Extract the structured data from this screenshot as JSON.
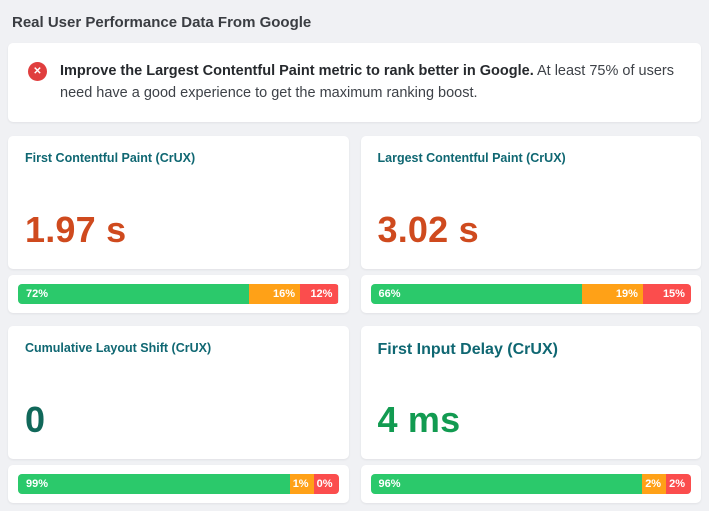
{
  "page": {
    "title": "Real User Performance Data From Google"
  },
  "alert": {
    "icon": "error-x-circle-icon",
    "icon_glyph": "✕",
    "bold_text": "Improve the Largest Contentful Paint metric to rank better in Google.",
    "text": " At least 75% of users need have a good experience to get the maximum ranking boost."
  },
  "colors": {
    "background": "#f0f1f4",
    "heading_teal": "#0f6772",
    "good_green": "#2bc96b",
    "needs_improvement_orange": "#ffa117",
    "poor_red": "#fb4d4d",
    "bad_value_orange_red": "#cf4a1e",
    "alert_icon_red": "#e03e3e"
  },
  "metrics": [
    {
      "label": "First Contentful Paint (CrUX)",
      "value": "1.97 s",
      "value_color": "#cf4a1e",
      "segments": [
        {
          "name": "good",
          "pct": 72,
          "label": "72%",
          "color": "#2bc96b"
        },
        {
          "name": "needs-improvement",
          "pct": 16,
          "label": "16%",
          "color": "#ffa117"
        },
        {
          "name": "poor",
          "pct": 12,
          "label": "12%",
          "color": "#fb4d4d"
        }
      ]
    },
    {
      "label": "Largest Contentful Paint (CrUX)",
      "value": "3.02 s",
      "value_color": "#cf4a1e",
      "segments": [
        {
          "name": "good",
          "pct": 66,
          "label": "66%",
          "color": "#2bc96b"
        },
        {
          "name": "needs-improvement",
          "pct": 19,
          "label": "19%",
          "color": "#ffa117"
        },
        {
          "name": "poor",
          "pct": 15,
          "label": "15%",
          "color": "#fb4d4d"
        }
      ]
    },
    {
      "label": "Cumulative Layout Shift (CrUX)",
      "value": "0",
      "value_color": "#11685a",
      "segments": [
        {
          "name": "good",
          "pct": 99,
          "label": "99%",
          "color": "#2bc96b"
        },
        {
          "name": "needs-improvement",
          "pct": 1,
          "label": "1%",
          "color": "#ffa117"
        },
        {
          "name": "poor",
          "pct": 0,
          "label": "0%",
          "color": "#fb4d4d"
        }
      ]
    },
    {
      "label": "First Input Delay (CrUX)",
      "value": "4 ms",
      "value_color": "#129b51",
      "segments": [
        {
          "name": "good",
          "pct": 96,
          "label": "96%",
          "color": "#2bc96b"
        },
        {
          "name": "needs-improvement",
          "pct": 2,
          "label": "2%",
          "color": "#ffa117"
        },
        {
          "name": "poor",
          "pct": 2,
          "label": "2%",
          "color": "#fb4d4d"
        }
      ]
    }
  ]
}
